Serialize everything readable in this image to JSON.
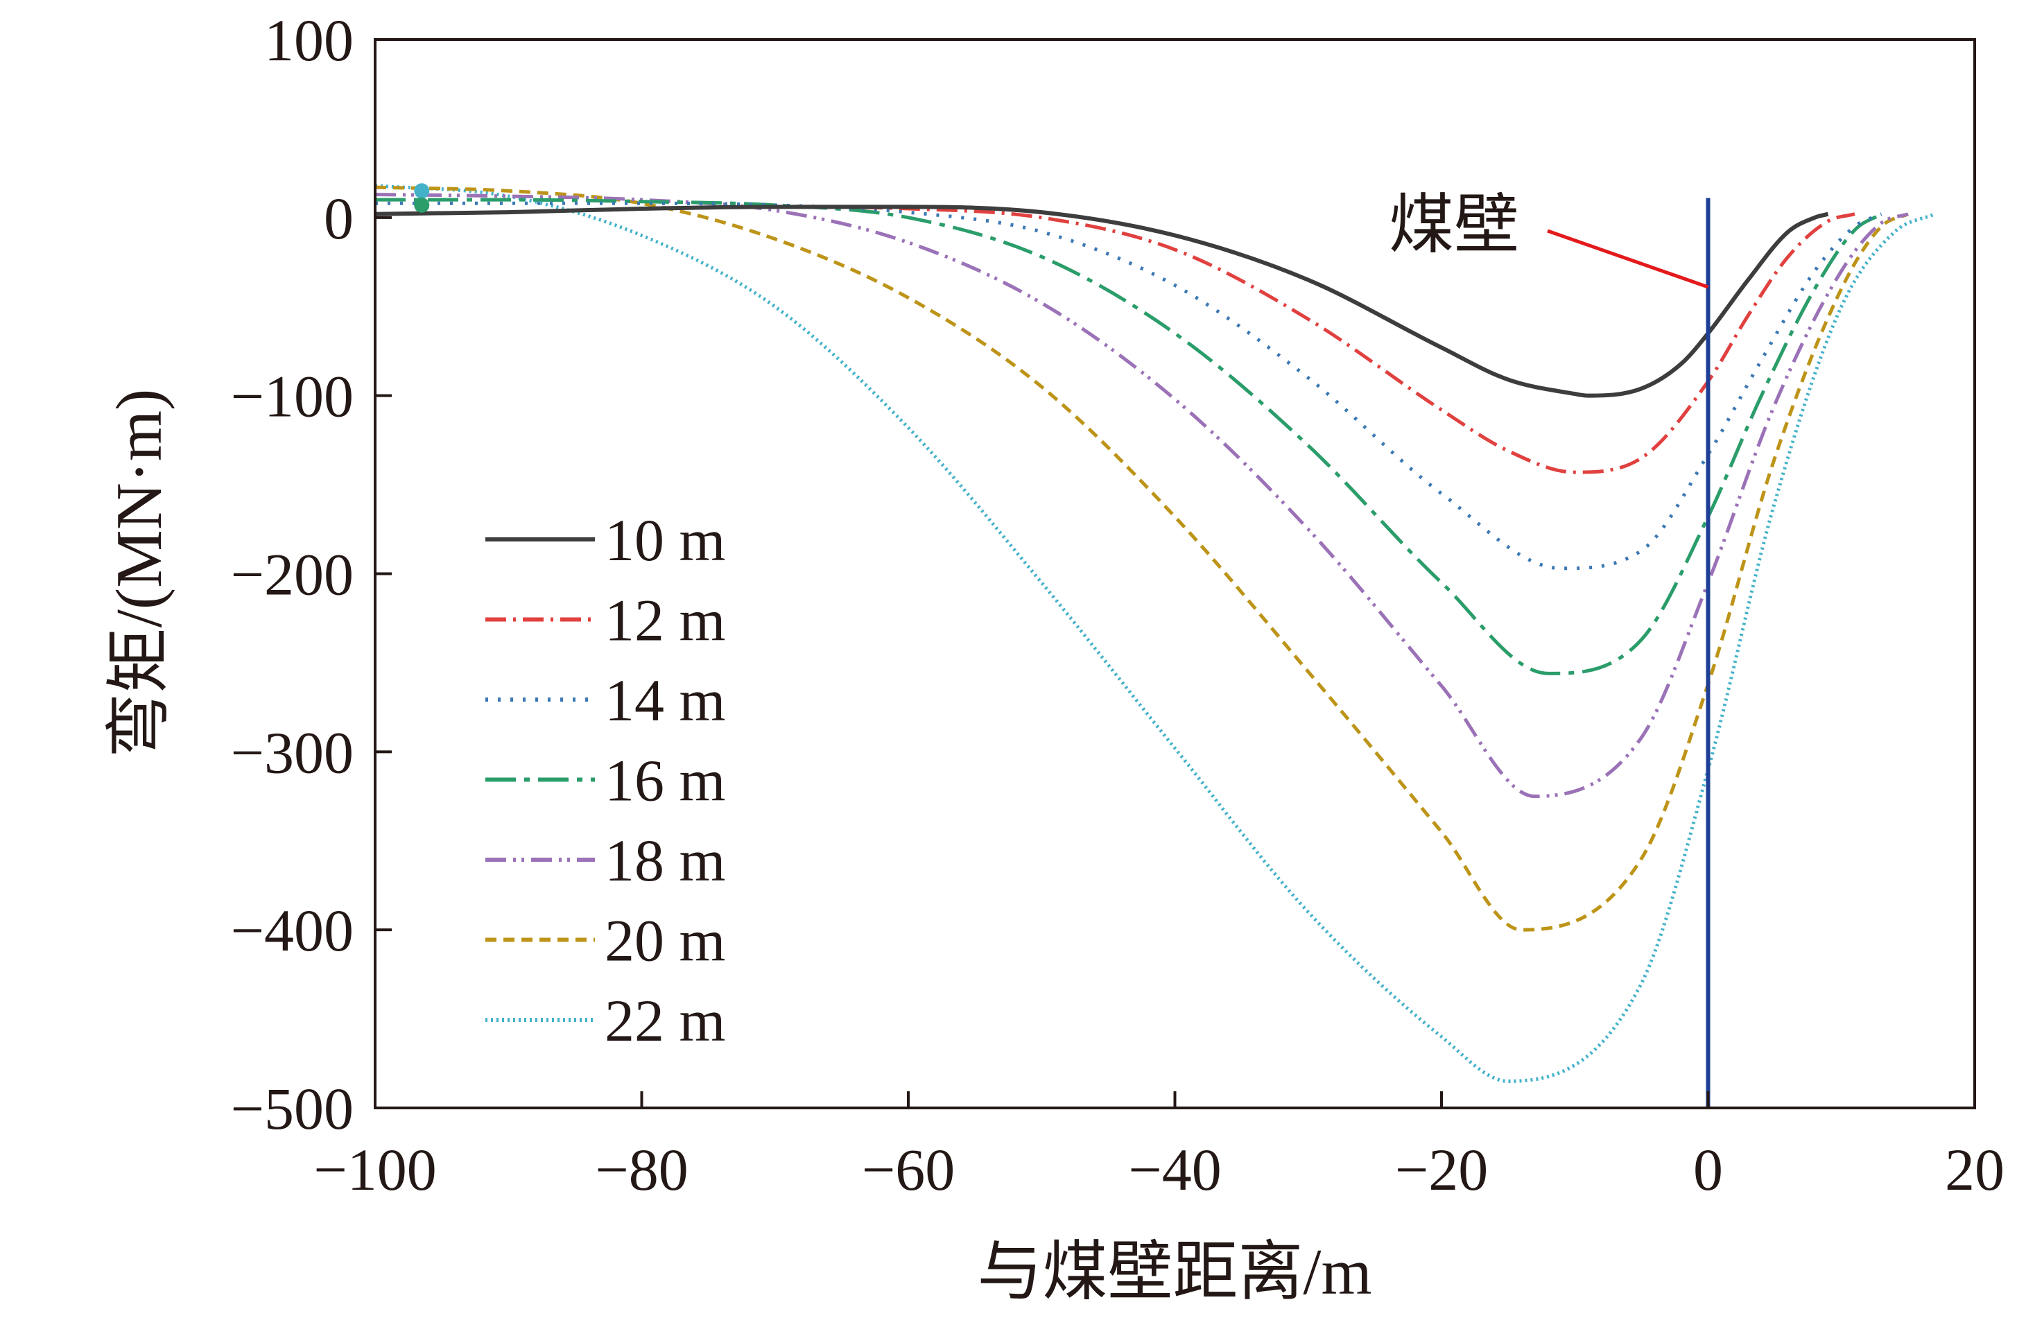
{
  "chart_data": {
    "type": "line",
    "title": "",
    "xlabel": "与煤壁距离/m",
    "ylabel": "弯矩/(MN·m)",
    "xlim": [
      -100,
      20
    ],
    "ylim": [
      -500,
      100
    ],
    "xticks": [
      -100,
      -80,
      -60,
      -40,
      -20,
      0,
      20
    ],
    "yticks": [
      100,
      0,
      -100,
      -200,
      -300,
      -400,
      -500
    ],
    "xtick_labels": [
      "−100",
      "−80",
      "−60",
      "−40",
      "−20",
      "0",
      "20"
    ],
    "ytick_labels": [
      "100",
      "0",
      "−100",
      "−200",
      "−300",
      "−400",
      "−500"
    ],
    "grid": false,
    "legend_position": "lower-left",
    "vertical_line": {
      "x": 0,
      "color": "#1f3f97",
      "label": "煤壁"
    },
    "annotation": {
      "text": "煤壁",
      "color": "#e31a1c"
    },
    "series": [
      {
        "name": "10 m",
        "color": "#3d3d3d",
        "dash": "solid",
        "start_value": 2,
        "end_x": 9,
        "min": {
          "x": -9,
          "y": -100
        },
        "value_at_wall": -65,
        "x": [
          -100,
          -90,
          -80,
          -70,
          -60,
          -50,
          -40,
          -30,
          -20,
          -15,
          -10,
          -9,
          -5,
          -2,
          0,
          3,
          6,
          8,
          9
        ],
        "y": [
          2,
          3,
          5,
          6,
          6,
          3,
          -10,
          -35,
          -73,
          -91,
          -99,
          -100,
          -96,
          -82,
          -65,
          -35,
          -8,
          0,
          2
        ]
      },
      {
        "name": "12 m",
        "color": "#e0413f",
        "dash": "long-dash-dot",
        "start_value": 2,
        "end_x": 11,
        "min": {
          "x": -10,
          "y": -143
        },
        "value_at_wall": -92,
        "x": [
          -100,
          -90,
          -80,
          -70,
          -60,
          -50,
          -40,
          -30,
          -20,
          -15,
          -10,
          -5,
          0,
          3,
          6,
          9,
          11
        ],
        "y": [
          2,
          3,
          5,
          6,
          5,
          0,
          -18,
          -57,
          -108,
          -131,
          -143,
          -135,
          -92,
          -55,
          -22,
          -2,
          2
        ]
      },
      {
        "name": "14 m",
        "color": "#3b78b4",
        "dash": "dot",
        "start_value": 8,
        "end_x": 13,
        "min": {
          "x": -11,
          "y": -197
        },
        "value_at_wall": -133,
        "x": [
          -100,
          -90,
          -80,
          -70,
          -60,
          -50,
          -40,
          -30,
          -20,
          -11,
          -5,
          0,
          4,
          8,
          11,
          13
        ],
        "y": [
          8,
          8,
          8,
          7,
          3,
          -8,
          -38,
          -90,
          -155,
          -197,
          -187,
          -133,
          -80,
          -30,
          -5,
          2
        ]
      },
      {
        "name": "16 m",
        "color": "#2a9d6a",
        "dash": "dash-dot",
        "start_value": 10,
        "end_x": 13,
        "min": {
          "x": -12,
          "y": -256
        },
        "value_at_wall": -168,
        "x": [
          -100,
          -90,
          -80,
          -70,
          -60,
          -50,
          -40,
          -30,
          -20,
          -12,
          -5,
          0,
          4,
          8,
          11,
          13
        ],
        "y": [
          10,
          10,
          9,
          7,
          0,
          -22,
          -65,
          -128,
          -205,
          -256,
          -237,
          -168,
          -100,
          -40,
          -7,
          2
        ]
      },
      {
        "name": "18 m",
        "color": "#9b72b7",
        "dash": "dash-dot-dot",
        "start_value": 13,
        "end_x": 15,
        "min": {
          "x": -13,
          "y": -325
        },
        "value_at_wall": -205,
        "x": [
          -100,
          -90,
          -80,
          -70,
          -60,
          -50,
          -40,
          -30,
          -20,
          -13,
          -5,
          0,
          5,
          10,
          13,
          15
        ],
        "y": [
          13,
          12,
          10,
          4,
          -14,
          -48,
          -102,
          -175,
          -263,
          -325,
          -292,
          -205,
          -105,
          -30,
          -3,
          2
        ]
      },
      {
        "name": "20 m",
        "color": "#bd9418",
        "dash": "short-dash",
        "start_value": 17,
        "end_x": 15,
        "min": {
          "x": -14,
          "y": -400
        },
        "value_at_wall": -262,
        "x": [
          -100,
          -90,
          -80,
          -70,
          -60,
          -50,
          -40,
          -30,
          -20,
          -14,
          -5,
          0,
          5,
          10,
          13,
          15
        ],
        "y": [
          17,
          15,
          8,
          -12,
          -45,
          -95,
          -168,
          -255,
          -345,
          -400,
          -360,
          -262,
          -135,
          -40,
          -5,
          2
        ]
      },
      {
        "name": "22 m",
        "color": "#43b2c9",
        "dash": "dense-dot",
        "start_value": 18,
        "end_x": 17,
        "min": {
          "x": -15,
          "y": -485
        },
        "value_at_wall": -310,
        "x": [
          -100,
          -90,
          -80,
          -70,
          -60,
          -50,
          -40,
          -30,
          -20,
          -15,
          -5,
          0,
          5,
          10,
          14,
          17
        ],
        "y": [
          18,
          12,
          -10,
          -50,
          -118,
          -205,
          -298,
          -390,
          -460,
          -485,
          -430,
          -310,
          -160,
          -50,
          -8,
          2
        ]
      }
    ]
  }
}
